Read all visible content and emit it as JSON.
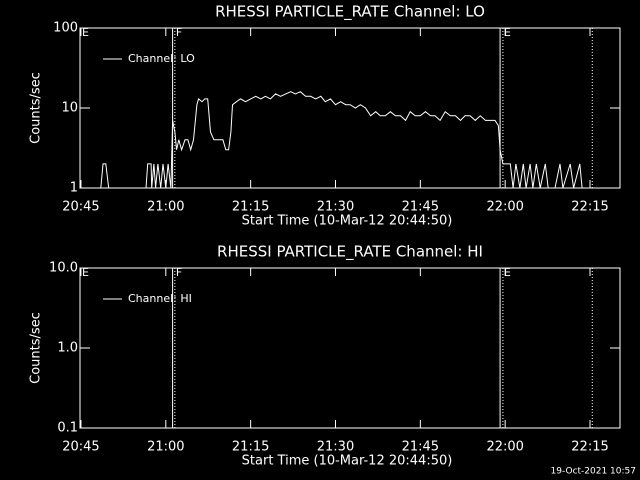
{
  "footer": "19-Oct-2021 10:57",
  "chart_data": [
    {
      "type": "line",
      "title": "RHESSI PARTICLE_RATE Channel: LO",
      "x_label": "Start Time (10-Mar-12 20:44:50)",
      "y_label": "Counts/sec",
      "log_y": true,
      "legend": "upper left",
      "background": "#000000",
      "foreground": "#ffffff",
      "xlim": [
        -0.17,
        95.3
      ],
      "ylim": [
        1,
        100
      ],
      "xticks": [
        {
          "value": 0,
          "label": "20:45"
        },
        {
          "value": 15,
          "label": "21:00"
        },
        {
          "value": 30,
          "label": "21:15"
        },
        {
          "value": 45,
          "label": "21:30"
        },
        {
          "value": 60,
          "label": "21:45"
        },
        {
          "value": 75,
          "label": "22:00"
        },
        {
          "value": 90,
          "label": "22:15"
        }
      ],
      "yticks": [
        1,
        10,
        100
      ],
      "vlines": [
        {
          "x": 16.2,
          "style": "solid"
        },
        {
          "x": 16.6,
          "style": "dotted"
        },
        {
          "x": 74.1,
          "style": "solid"
        },
        {
          "x": 74.6,
          "style": "dotted"
        },
        {
          "x": 90.4,
          "style": "dotted"
        }
      ],
      "flags": [
        {
          "label": "E",
          "x": 0
        },
        {
          "label": "F",
          "x": 16.6
        },
        {
          "label": "E",
          "x": 74.6
        }
      ],
      "series": [
        {
          "name": "Channel: LO",
          "color": "#ffffff",
          "x": [
            3.5,
            3.9,
            4.4,
            4.9,
            11.5,
            11.8,
            12.4,
            12.5,
            12.9,
            13.2,
            13.6,
            14.1,
            14.5,
            15.0,
            15.4,
            15.9,
            16.2,
            16.6,
            16.9,
            17.3,
            17.8,
            18.4,
            18.9,
            19.4,
            19.9,
            20.5,
            20.8,
            21.4,
            21.9,
            22.4,
            22.9,
            23.5,
            24.0,
            24.5,
            25.1,
            25.6,
            26.1,
            26.5,
            26.8,
            27.5,
            28.2,
            29.1,
            30.0,
            30.9,
            31.8,
            32.6,
            33.5,
            34.4,
            35.3,
            36.2,
            37.1,
            37.9,
            38.8,
            39.7,
            40.6,
            41.5,
            42.4,
            43.2,
            44.1,
            45.0,
            45.9,
            46.8,
            47.6,
            48.5,
            49.4,
            50.3,
            51.2,
            52.1,
            52.9,
            53.8,
            54.7,
            55.6,
            56.5,
            57.4,
            58.2,
            59.1,
            60.0,
            60.9,
            61.8,
            62.6,
            63.5,
            64.4,
            65.3,
            66.2,
            67.1,
            67.9,
            68.8,
            69.7,
            70.6,
            71.5,
            72.4,
            73.2,
            73.8,
            74.1,
            74.6,
            75.2,
            75.9,
            76.4,
            76.9,
            77.6,
            78.2,
            78.7,
            79.4,
            79.9,
            80.5,
            81.2,
            82.1,
            82.6,
            83.8,
            84.7,
            85.2,
            86.5,
            87.1,
            88.2,
            88.6
          ],
          "values": [
            1,
            2,
            2,
            1,
            1,
            2,
            2,
            1,
            2,
            1,
            2,
            1,
            2,
            1,
            2,
            1,
            7,
            5,
            3,
            4,
            3,
            4,
            4,
            3,
            4,
            11,
            13,
            12,
            13,
            13,
            5,
            4,
            4,
            4,
            4,
            3,
            3,
            5,
            11,
            12,
            13,
            12,
            13,
            14,
            13,
            14,
            13,
            15,
            14,
            15,
            16,
            15,
            16,
            14,
            14,
            13,
            14,
            12,
            13,
            11,
            12,
            11,
            11,
            10,
            11,
            10,
            8,
            9,
            8,
            8,
            9,
            8,
            8,
            7,
            9,
            8,
            8,
            9,
            8,
            8,
            7,
            9,
            8,
            8,
            7,
            8,
            8,
            7,
            8,
            7,
            7,
            7,
            6,
            3,
            2,
            2,
            2,
            1,
            2,
            1,
            2,
            1,
            2,
            1,
            2,
            1,
            2,
            1,
            1,
            2,
            1,
            2,
            1,
            2,
            1
          ]
        }
      ]
    },
    {
      "type": "line",
      "title": "RHESSI PARTICLE_RATE Channel: HI",
      "x_label": "Start Time (10-Mar-12 20:44:50)",
      "y_label": "Counts/sec",
      "log_y": true,
      "legend": "upper left",
      "background": "#000000",
      "foreground": "#ffffff",
      "xlim": [
        -0.17,
        95.3
      ],
      "ylim": [
        0.1,
        10
      ],
      "xticks": [
        {
          "value": 0,
          "label": "20:45"
        },
        {
          "value": 15,
          "label": "21:00"
        },
        {
          "value": 30,
          "label": "21:15"
        },
        {
          "value": 45,
          "label": "21:30"
        },
        {
          "value": 60,
          "label": "21:45"
        },
        {
          "value": 75,
          "label": "22:00"
        },
        {
          "value": 90,
          "label": "22:15"
        }
      ],
      "yticks": [
        0.1,
        {
          "value": 1,
          "label": "1.0"
        },
        {
          "value": 10,
          "label": "10.0"
        }
      ],
      "vlines": [
        {
          "x": 16.2,
          "style": "solid"
        },
        {
          "x": 16.6,
          "style": "dotted"
        },
        {
          "x": 74.1,
          "style": "solid"
        },
        {
          "x": 74.6,
          "style": "dotted"
        },
        {
          "x": 90.4,
          "style": "dotted"
        }
      ],
      "flags": [
        {
          "label": "E",
          "x": 0
        },
        {
          "label": "F",
          "x": 16.6
        },
        {
          "label": "E",
          "x": 74.6
        }
      ],
      "series": [
        {
          "name": "Channel: HI",
          "color": "#ffffff",
          "x": [],
          "values": []
        }
      ]
    }
  ]
}
